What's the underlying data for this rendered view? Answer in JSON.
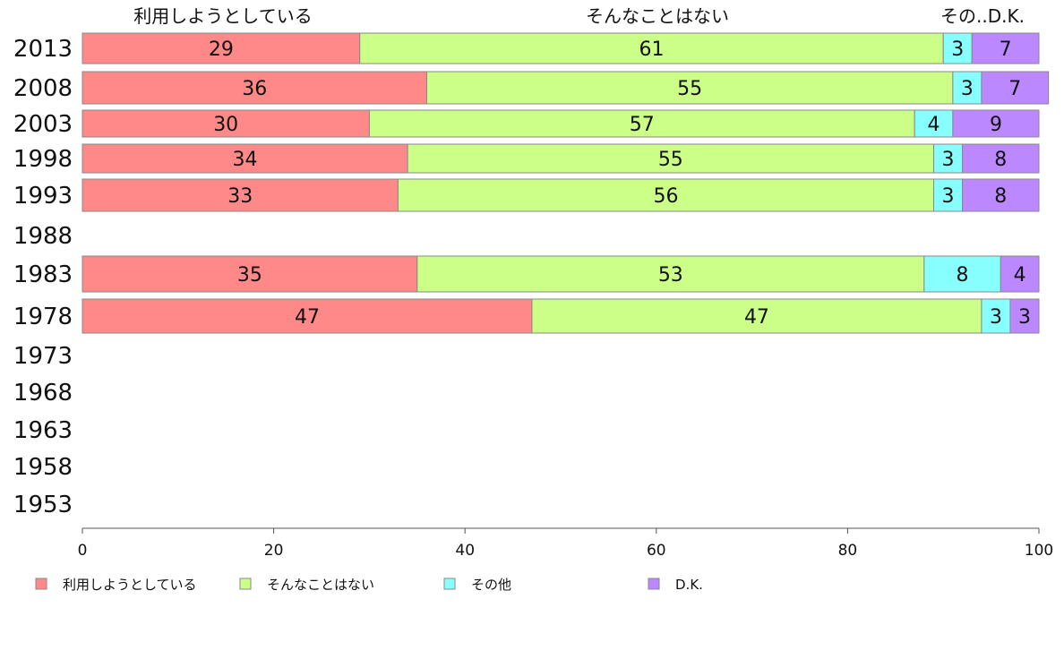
{
  "chart_data": {
    "type": "bar",
    "orientation": "horizontal",
    "stacked": true,
    "categories": [
      "2013",
      "2008",
      "2003",
      "1998",
      "1993",
      "1988",
      "1983",
      "1978",
      "1973",
      "1968",
      "1963",
      "1958",
      "1953"
    ],
    "series": [
      {
        "name": "利用しようとしている",
        "color": "#ff8888",
        "values": [
          29,
          36,
          30,
          34,
          33,
          null,
          35,
          47,
          null,
          null,
          null,
          null,
          null
        ]
      },
      {
        "name": "そんなことはない",
        "color": "#ccff88",
        "values": [
          61,
          55,
          57,
          55,
          56,
          null,
          53,
          47,
          null,
          null,
          null,
          null,
          null
        ]
      },
      {
        "name": "その他",
        "color": "#88ffff",
        "values": [
          3,
          3,
          4,
          3,
          3,
          null,
          8,
          3,
          null,
          null,
          null,
          null,
          null
        ]
      },
      {
        "name": "D.K.",
        "color": "#bb88ff",
        "values": [
          7,
          7,
          9,
          8,
          8,
          null,
          4,
          3,
          null,
          null,
          null,
          null,
          null
        ]
      }
    ],
    "top_labels": [
      "利用しようとしている",
      "そんなことはない",
      "その..D.K."
    ],
    "xlim": [
      0,
      100
    ],
    "xticks": [
      "0",
      "20",
      "40",
      "60",
      "80",
      "100"
    ],
    "grid": false,
    "legend_position": "bottom"
  }
}
